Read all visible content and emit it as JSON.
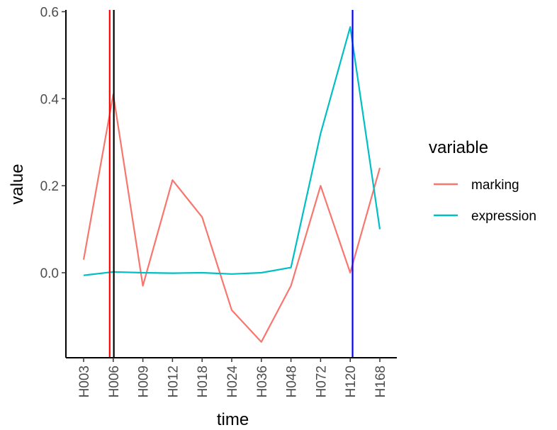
{
  "chart_data": {
    "type": "line",
    "xlabel": "time",
    "ylabel": "value",
    "categories": [
      "H003",
      "H006",
      "H009",
      "H012",
      "H018",
      "H024",
      "H036",
      "H048",
      "H072",
      "H120",
      "H168"
    ],
    "ylim": [
      -0.195,
      0.6
    ],
    "yticks": [
      0.0,
      0.2,
      0.4,
      0.6
    ],
    "ytick_labels": [
      "0.0",
      "0.2",
      "0.4",
      "0.6"
    ],
    "grid": false,
    "legend": {
      "title": "variable",
      "position": "right"
    },
    "series": [
      {
        "name": "marking",
        "color": "#F8766D",
        "values": [
          0.03,
          0.41,
          -0.03,
          0.213,
          0.128,
          -0.086,
          -0.159,
          -0.03,
          0.2,
          0.0,
          0.241
        ]
      },
      {
        "name": "expression",
        "color": "#00BFC4",
        "values": [
          -0.006,
          0.002,
          0.0,
          -0.001,
          0.0,
          -0.003,
          0.0,
          0.012,
          0.32,
          0.565,
          0.1
        ]
      }
    ],
    "vlines": [
      {
        "color": "#FF0000",
        "x_category_offset": 0.88
      },
      {
        "color": "#000000",
        "x_category_offset": 1.02
      },
      {
        "color": "#0000FF",
        "x_category_offset": 9.08
      }
    ]
  }
}
